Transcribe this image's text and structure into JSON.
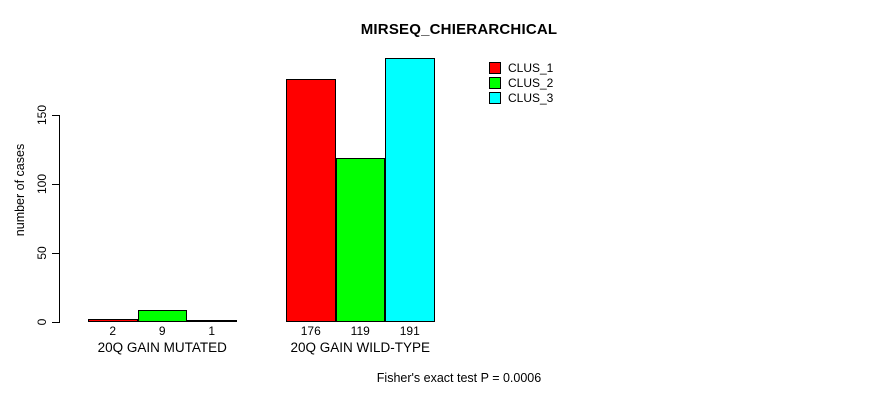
{
  "chart_data": {
    "type": "bar",
    "title": "MIRSEQ_CHIERARCHICAL",
    "ylabel": "number of cases",
    "xlabel": "",
    "categories": [
      "20Q GAIN MUTATED",
      "20Q GAIN WILD-TYPE"
    ],
    "series": [
      {
        "name": "CLUS_1",
        "color": "#ff0000",
        "values": [
          2,
          176
        ]
      },
      {
        "name": "CLUS_2",
        "color": "#00ff00",
        "values": [
          9,
          119
        ]
      },
      {
        "name": "CLUS_3",
        "color": "#00ffff",
        "values": [
          1,
          191
        ]
      }
    ],
    "yticks": [
      0,
      50,
      100,
      150
    ],
    "ylim": [
      0,
      195
    ],
    "grid": false,
    "legend_position": "topright",
    "bar_value_labels_shown": true,
    "annotation": "Fisher's exact test P = 0.0006"
  },
  "colors": {
    "background": "#ffffff",
    "axis": "#000000",
    "text": "#000000",
    "bar_border": "#000000"
  }
}
